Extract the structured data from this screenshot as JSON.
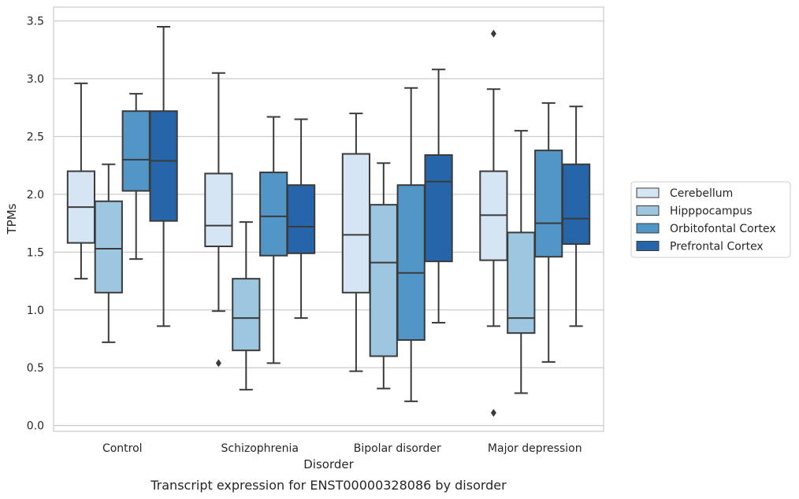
{
  "chart_data": {
    "type": "boxplot",
    "title": "",
    "caption": "Transcript expression for ENST00000328086 by disorder",
    "xlabel": "Disorder",
    "ylabel": "TPMs",
    "ylim": [
      -0.05,
      3.62
    ],
    "yticks": [
      "0.0",
      "0.5",
      "1.0",
      "1.5",
      "2.0",
      "2.5",
      "3.0",
      "3.5"
    ],
    "grid": "horizontal",
    "legend_position": "right",
    "categories": [
      "Control",
      "Schizophrenia",
      "Bipolar disorder",
      "Major depression"
    ],
    "series": [
      {
        "name": "Cerebellum",
        "color": "#d6e5f4",
        "boxes": [
          {
            "whislo": 1.27,
            "q1": 1.58,
            "med": 1.89,
            "q3": 2.2,
            "whishi": 2.96,
            "fliers": []
          },
          {
            "whislo": 0.99,
            "q1": 1.55,
            "med": 1.73,
            "q3": 2.18,
            "whishi": 3.05,
            "fliers": [
              0.54
            ]
          },
          {
            "whislo": 0.47,
            "q1": 1.15,
            "med": 1.65,
            "q3": 2.35,
            "whishi": 2.7,
            "fliers": []
          },
          {
            "whislo": 0.86,
            "q1": 1.43,
            "med": 1.82,
            "q3": 2.2,
            "whishi": 2.91,
            "fliers": [
              3.39,
              0.11
            ]
          }
        ]
      },
      {
        "name": "Hipppocampus",
        "color": "#9dc7e0",
        "boxes": [
          {
            "whislo": 0.72,
            "q1": 1.15,
            "med": 1.53,
            "q3": 1.94,
            "whishi": 2.26,
            "fliers": []
          },
          {
            "whislo": 0.31,
            "q1": 0.65,
            "med": 0.93,
            "q3": 1.27,
            "whishi": 1.76,
            "fliers": []
          },
          {
            "whislo": 0.32,
            "q1": 0.6,
            "med": 1.41,
            "q3": 1.91,
            "whishi": 2.27,
            "fliers": []
          },
          {
            "whislo": 0.28,
            "q1": 0.8,
            "med": 0.93,
            "q3": 1.67,
            "whishi": 2.55,
            "fliers": []
          }
        ]
      },
      {
        "name": "Orbitofontal Cortex",
        "color": "#5196c7",
        "boxes": [
          {
            "whislo": 1.44,
            "q1": 2.03,
            "med": 2.3,
            "q3": 2.72,
            "whishi": 2.87,
            "fliers": []
          },
          {
            "whislo": 0.54,
            "q1": 1.47,
            "med": 1.81,
            "q3": 2.19,
            "whishi": 2.67,
            "fliers": []
          },
          {
            "whislo": 0.21,
            "q1": 0.74,
            "med": 1.32,
            "q3": 2.08,
            "whishi": 2.92,
            "fliers": []
          },
          {
            "whislo": 0.55,
            "q1": 1.46,
            "med": 1.75,
            "q3": 2.38,
            "whishi": 2.79,
            "fliers": []
          }
        ]
      },
      {
        "name": "Prefrontal Cortex",
        "color": "#2665a9",
        "boxes": [
          {
            "whislo": 0.86,
            "q1": 1.77,
            "med": 2.29,
            "q3": 2.72,
            "whishi": 3.45,
            "fliers": []
          },
          {
            "whislo": 0.93,
            "q1": 1.49,
            "med": 1.72,
            "q3": 2.08,
            "whishi": 2.65,
            "fliers": []
          },
          {
            "whislo": 0.89,
            "q1": 1.42,
            "med": 2.11,
            "q3": 2.34,
            "whishi": 3.08,
            "fliers": []
          },
          {
            "whislo": 0.86,
            "q1": 1.57,
            "med": 1.79,
            "q3": 2.26,
            "whishi": 2.76,
            "fliers": []
          }
        ]
      }
    ]
  }
}
